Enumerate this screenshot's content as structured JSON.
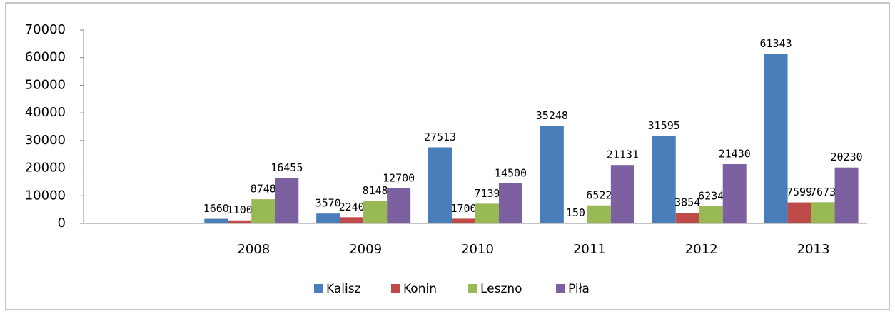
{
  "chart_data": {
    "type": "bar",
    "categories": [
      null,
      "2008",
      "2009",
      "2010",
      "2011",
      "2012",
      "2013"
    ],
    "series": [
      {
        "name": "Kalisz",
        "color": "#4a7ebb",
        "values": [
          null,
          1660,
          3570,
          27513,
          35248,
          31595,
          61343
        ]
      },
      {
        "name": "Konin",
        "color": "#be4b48",
        "values": [
          null,
          1100,
          2240,
          1700,
          150,
          3854,
          7599
        ]
      },
      {
        "name": "Leszno",
        "color": "#98b954",
        "values": [
          null,
          8748,
          8148,
          7139,
          6522,
          6234,
          7673
        ]
      },
      {
        "name": "Piła",
        "color": "#7d60a0",
        "values": [
          null,
          16455,
          12700,
          14500,
          21131,
          21430,
          20230
        ]
      }
    ],
    "ylim": [
      0,
      70000
    ],
    "yticks": [
      0,
      10000,
      20000,
      30000,
      40000,
      50000,
      60000,
      70000
    ],
    "grid": false,
    "legend": "bottom"
  }
}
